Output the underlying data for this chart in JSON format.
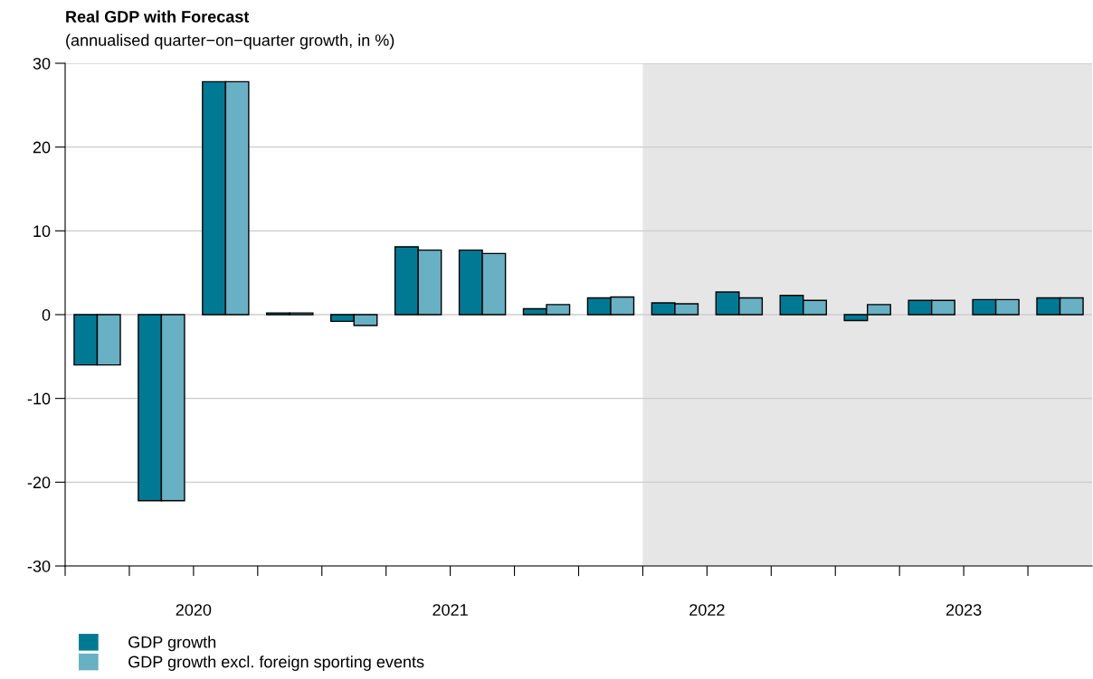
{
  "chart_data": {
    "type": "bar",
    "title": "Real GDP with Forecast",
    "subtitle": "(annualised quarter−on−quarter growth, in %)",
    "x": [
      2020.125,
      2020.375,
      2020.625,
      2020.875,
      2021.125,
      2021.375,
      2021.625,
      2021.875,
      2022.125,
      2022.375,
      2022.625,
      2022.875,
      2023.125,
      2023.375,
      2023.625,
      2023.875
    ],
    "series": [
      {
        "name": "GDP growth",
        "color": "#007a94",
        "values": [
          -6.0,
          -22.2,
          27.8,
          0.2,
          -0.8,
          8.1,
          7.7,
          0.7,
          2.0,
          1.4,
          2.7,
          2.3,
          -0.7,
          1.7,
          1.8,
          2.0
        ]
      },
      {
        "name": "GDP growth excl. foreign sporting events",
        "color": "#68b0c3",
        "values": [
          -6.0,
          -22.2,
          27.8,
          0.2,
          -1.3,
          7.7,
          7.3,
          1.2,
          2.1,
          1.3,
          2.0,
          1.7,
          1.2,
          1.7,
          1.8,
          2.0
        ]
      }
    ],
    "xlim": [
      2020,
      2024
    ],
    "xticks": [
      {
        "value": 2020,
        "label": null
      },
      {
        "value": 2020.25,
        "label": null
      },
      {
        "value": 2020.5,
        "label": "2020"
      },
      {
        "value": 2020.75,
        "label": null
      },
      {
        "value": 2021,
        "label": null
      },
      {
        "value": 2021.25,
        "label": null
      },
      {
        "value": 2021.5,
        "label": "2021"
      },
      {
        "value": 2021.75,
        "label": null
      },
      {
        "value": 2022,
        "label": null
      },
      {
        "value": 2022.25,
        "label": null
      },
      {
        "value": 2022.5,
        "label": "2022"
      },
      {
        "value": 2022.75,
        "label": null
      },
      {
        "value": 2023,
        "label": null
      },
      {
        "value": 2023.25,
        "label": null
      },
      {
        "value": 2023.5,
        "label": "2023"
      },
      {
        "value": 2023.75,
        "label": null
      }
    ],
    "ylim": [
      -30,
      30
    ],
    "yticks": [
      -30,
      -20,
      -10,
      0,
      10,
      20,
      30
    ],
    "bands": [
      {
        "axis": "x",
        "from": 2022.25,
        "to": 2024,
        "color": "#e6e6e6"
      }
    ],
    "grid": "y",
    "legend": "bottom left"
  }
}
